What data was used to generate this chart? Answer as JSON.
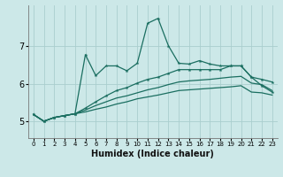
{
  "xlabel": "Humidex (Indice chaleur)",
  "ylabel": "",
  "bg_color": "#cce8e8",
  "grid_color": "#aacece",
  "line_color": "#1a6e60",
  "x_values": [
    0,
    1,
    2,
    3,
    4,
    5,
    6,
    7,
    8,
    9,
    10,
    11,
    12,
    13,
    14,
    15,
    16,
    17,
    18,
    19,
    20,
    21,
    22,
    23
  ],
  "line1_y": [
    5.18,
    5.0,
    5.1,
    5.15,
    5.2,
    6.78,
    6.22,
    6.48,
    6.48,
    6.35,
    6.55,
    7.62,
    7.75,
    7.02,
    6.55,
    6.53,
    6.62,
    6.53,
    6.48,
    6.48,
    6.48,
    6.18,
    5.95,
    5.78
  ],
  "line2_y": [
    5.18,
    5.0,
    5.1,
    5.15,
    5.2,
    5.35,
    5.52,
    5.68,
    5.82,
    5.9,
    6.02,
    6.12,
    6.18,
    6.28,
    6.38,
    6.38,
    6.38,
    6.38,
    6.38,
    6.48,
    6.48,
    6.18,
    6.12,
    6.05
  ],
  "line3_y": [
    5.18,
    5.0,
    5.1,
    5.15,
    5.2,
    5.3,
    5.42,
    5.52,
    5.62,
    5.68,
    5.76,
    5.84,
    5.9,
    5.98,
    6.05,
    6.08,
    6.1,
    6.12,
    6.15,
    6.18,
    6.2,
    6.02,
    5.98,
    5.82
  ],
  "line4_y": [
    5.18,
    5.0,
    5.1,
    5.15,
    5.2,
    5.25,
    5.32,
    5.38,
    5.46,
    5.52,
    5.6,
    5.65,
    5.7,
    5.76,
    5.82,
    5.84,
    5.86,
    5.88,
    5.9,
    5.92,
    5.95,
    5.78,
    5.76,
    5.7
  ],
  "ylim": [
    4.55,
    8.1
  ],
  "yticks": [
    5,
    6,
    7
  ],
  "xlim": [
    -0.5,
    23.5
  ]
}
